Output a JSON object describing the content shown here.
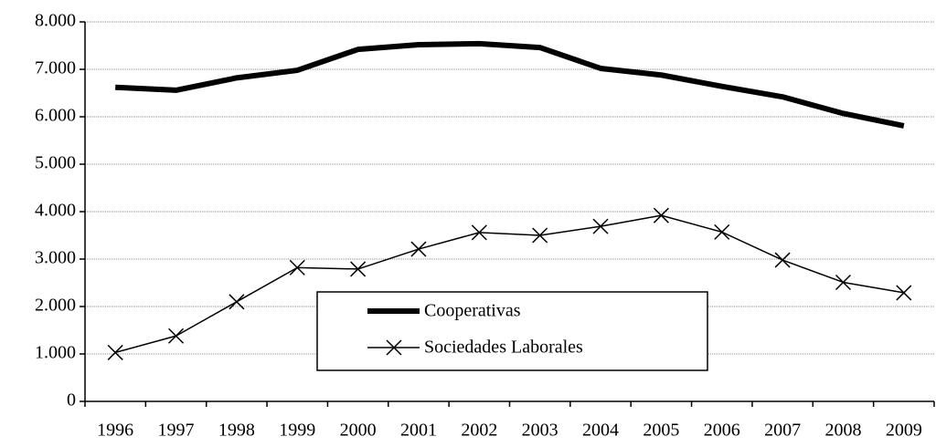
{
  "chart_data": {
    "type": "line",
    "categories": [
      "1996",
      "1997",
      "1998",
      "1999",
      "2000",
      "2001",
      "2002",
      "2003",
      "2004",
      "2005",
      "2006",
      "2007",
      "2008",
      "2009"
    ],
    "series": [
      {
        "name": "Cooperativas",
        "color": "#000000",
        "line_width": 6,
        "marker": "none",
        "values": [
          6620,
          6560,
          6820,
          6980,
          7420,
          7520,
          7540,
          7460,
          7020,
          6880,
          6640,
          6420,
          6070,
          5810
        ]
      },
      {
        "name": "Sociedades Laborales",
        "color": "#000000",
        "line_width": 1.5,
        "marker": "x",
        "values": [
          1030,
          1380,
          2100,
          2820,
          2790,
          3210,
          3560,
          3500,
          3690,
          3920,
          3570,
          2980,
          2510,
          2290
        ]
      }
    ],
    "ylim": [
      0,
      8000
    ],
    "yticks": [
      0,
      {
        "value": 1000,
        "label": "1.000"
      },
      {
        "value": 2000,
        "label": "2.000"
      },
      {
        "value": 3000,
        "label": "3.000"
      },
      {
        "value": 4000,
        "label": "4.000"
      },
      {
        "value": 5000,
        "label": "5.000"
      },
      {
        "value": 6000,
        "label": "6.000"
      },
      {
        "value": 7000,
        "label": "7.000"
      },
      {
        "value": 8000,
        "label": "8.000"
      }
    ],
    "grid": true,
    "legend": "lower-center"
  }
}
